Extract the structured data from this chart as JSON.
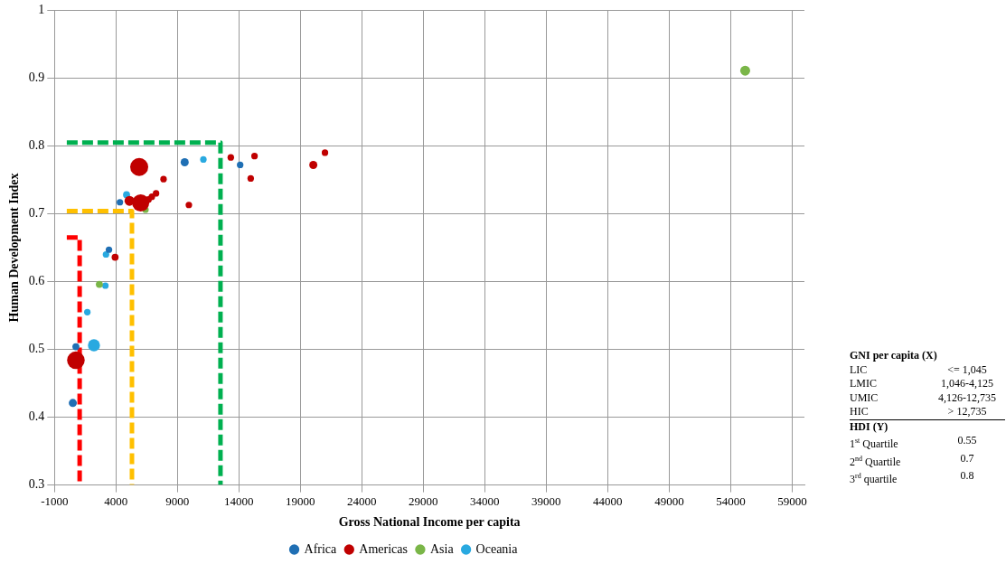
{
  "chart_data": {
    "type": "bubble",
    "xlabel": "Gross National Income per capita",
    "ylabel": "Human Development Index",
    "xlim": [
      -1000,
      60000
    ],
    "xticks": [
      -1000,
      4000,
      9000,
      14000,
      19000,
      24000,
      29000,
      34000,
      39000,
      44000,
      49000,
      54000,
      59000
    ],
    "ylim": [
      0.3,
      1
    ],
    "yticks": [
      0.3,
      0.4,
      0.5,
      0.6,
      0.7,
      0.8,
      0.9,
      1
    ],
    "grid": true,
    "legend": "bottom",
    "series": [
      {
        "name": "Africa",
        "color": "#1f6fb4",
        "x": [
          9590,
          14100,
          3430,
          740,
          490,
          4320
        ],
        "values": [
          0.776,
          0.772,
          0.647,
          0.504,
          0.421,
          0.717
        ],
        "sizes": [
          0.2,
          0.13,
          0.13,
          0.15,
          0.2,
          0.13
        ]
      },
      {
        "name": "Americas",
        "color": "#c00000",
        "x": [
          5890,
          6010,
          5100,
          6650,
          6920,
          7260,
          7870,
          9930,
          13340,
          15270,
          14960,
          20050,
          21000,
          3930,
          740
        ],
        "values": [
          0.769,
          0.716,
          0.719,
          0.721,
          0.725,
          0.73,
          0.751,
          0.713,
          0.783,
          0.785,
          0.752,
          0.772,
          0.79,
          0.636,
          0.484
        ],
        "sizes": [
          1,
          0.9,
          0.3,
          0.13,
          0.13,
          0.13,
          0.13,
          0.13,
          0.13,
          0.13,
          0.13,
          0.2,
          0.13,
          0.15,
          0.95
        ]
      },
      {
        "name": "Asia",
        "color": "#7ab648",
        "x": [
          55180,
          6400,
          2650
        ],
        "values": [
          0.911,
          0.706,
          0.596
        ],
        "sizes": [
          0.3,
          0.13,
          0.15
        ]
      },
      {
        "name": "Oceania",
        "color": "#29a9e0",
        "x": [
          4860,
          11110,
          3190,
          3140,
          1670,
          2210
        ],
        "values": [
          0.728,
          0.78,
          0.64,
          0.594,
          0.555,
          0.506
        ],
        "sizes": [
          0.15,
          0.13,
          0.13,
          0.13,
          0.13,
          0.45
        ]
      },
      {
        "type": "line",
        "color": "#ff0000",
        "line_style": "dashed",
        "marker": "none",
        "x": [
          0,
          1045,
          1045
        ],
        "values": [
          0.665,
          0.665,
          0.3
        ]
      },
      {
        "type": "line",
        "color": "#ffc000",
        "line_style": "dashed",
        "marker": "none",
        "x": [
          0,
          5300,
          5300
        ],
        "values": [
          0.704,
          0.704,
          0.3
        ]
      },
      {
        "type": "line",
        "color": "#00b050",
        "line_style": "dashed",
        "marker": "none",
        "x": [
          0,
          12500,
          12500
        ],
        "values": [
          0.805,
          0.805,
          0.3
        ]
      }
    ],
    "annotations": [
      "GNI per capita (X)",
      "LIC",
      "<= 1,045",
      "LMIC",
      "1,046-4,125",
      "UMIC",
      "4,126-12,735",
      "HIC",
      "> 12,735",
      "HDI (Y)",
      "1$^{st}$ Quartile",
      "0.55",
      "2$^{nd}$ Quartile",
      "0.7",
      "3$^{rd}$ quartile",
      "0.8"
    ]
  }
}
